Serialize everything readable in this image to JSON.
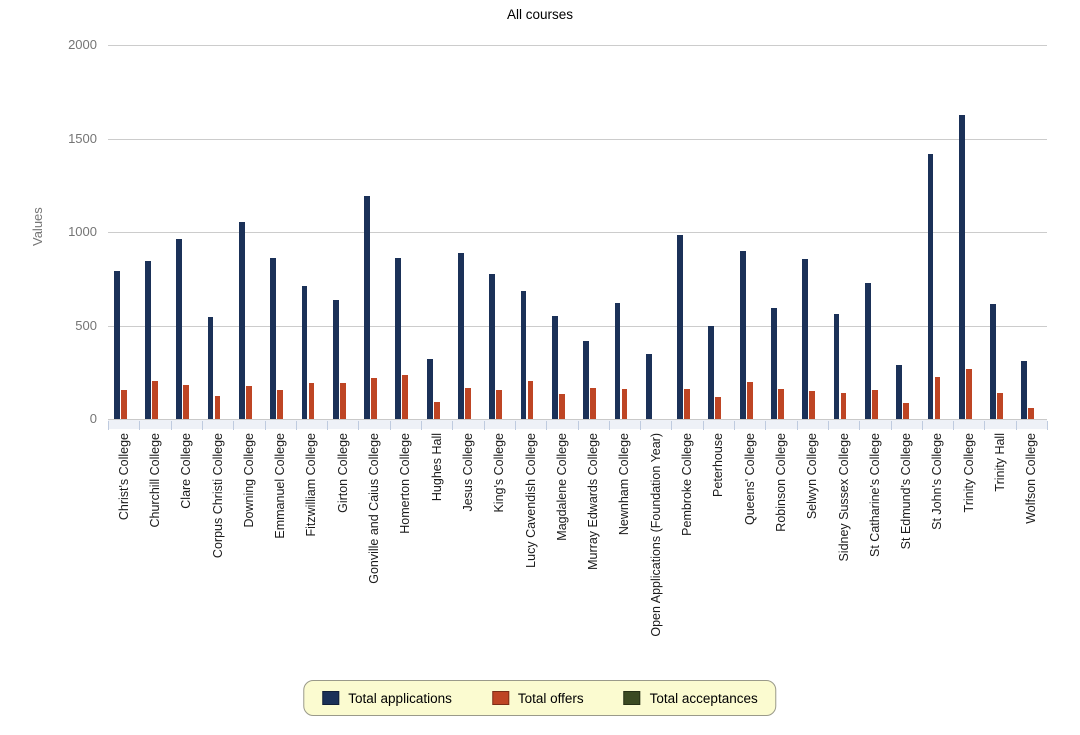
{
  "title": "All courses",
  "chart_data": {
    "type": "bar",
    "title": "All courses",
    "xlabel": "",
    "ylabel": "Values",
    "ylim": [
      0,
      2000
    ],
    "yticks": [
      0,
      500,
      1000,
      1500,
      2000
    ],
    "grid": true,
    "legend_position": "bottom",
    "categories": [
      "Christ's College",
      "Churchill College",
      "Clare College",
      "Corpus Christi College",
      "Downing College",
      "Emmanuel College",
      "Fitzwilliam College",
      "Girton College",
      "Gonville and Caius College",
      "Homerton College",
      "Hughes Hall",
      "Jesus College",
      "King's College",
      "Lucy Cavendish College",
      "Magdalene College",
      "Murray Edwards College",
      "Newnham College",
      "Open Applications (Foundation Year)",
      "Pembroke College",
      "Peterhouse",
      "Queens' College",
      "Robinson College",
      "Selwyn College",
      "Sidney Sussex College",
      "St Catharine's College",
      "St Edmund's College",
      "St John's College",
      "Trinity College",
      "Trinity Hall",
      "Wolfson College"
    ],
    "series": [
      {
        "name": "Total applications",
        "color": "#1b3158",
        "values": [
          790,
          845,
          965,
          545,
          1055,
          860,
          710,
          635,
          1195,
          860,
          320,
          890,
          775,
          685,
          550,
          415,
          620,
          345,
          985,
          500,
          900,
          595,
          855,
          560,
          725,
          290,
          1415,
          1625,
          615,
          310
        ]
      },
      {
        "name": "Total offers",
        "color": "#be4524",
        "values": [
          155,
          205,
          180,
          125,
          175,
          155,
          190,
          190,
          220,
          235,
          90,
          165,
          155,
          205,
          135,
          165,
          160,
          0,
          160,
          115,
          200,
          160,
          150,
          140,
          155,
          85,
          225,
          270,
          140,
          60
        ]
      },
      {
        "name": "Total acceptances",
        "color": "#3b4a22",
        "values": [
          0,
          0,
          0,
          0,
          0,
          0,
          0,
          0,
          0,
          0,
          0,
          0,
          0,
          0,
          0,
          0,
          0,
          0,
          0,
          0,
          0,
          0,
          0,
          0,
          0,
          0,
          0,
          0,
          0,
          0
        ]
      }
    ]
  },
  "legend": {
    "items": [
      "Total applications",
      "Total offers",
      "Total acceptances"
    ]
  },
  "colors": {
    "gridline": "#cccccc",
    "axis_text": "#757575",
    "category_text": "#1a1a1a",
    "legend_background": "#fbfbd0",
    "legend_border": "#9a9a8a"
  }
}
